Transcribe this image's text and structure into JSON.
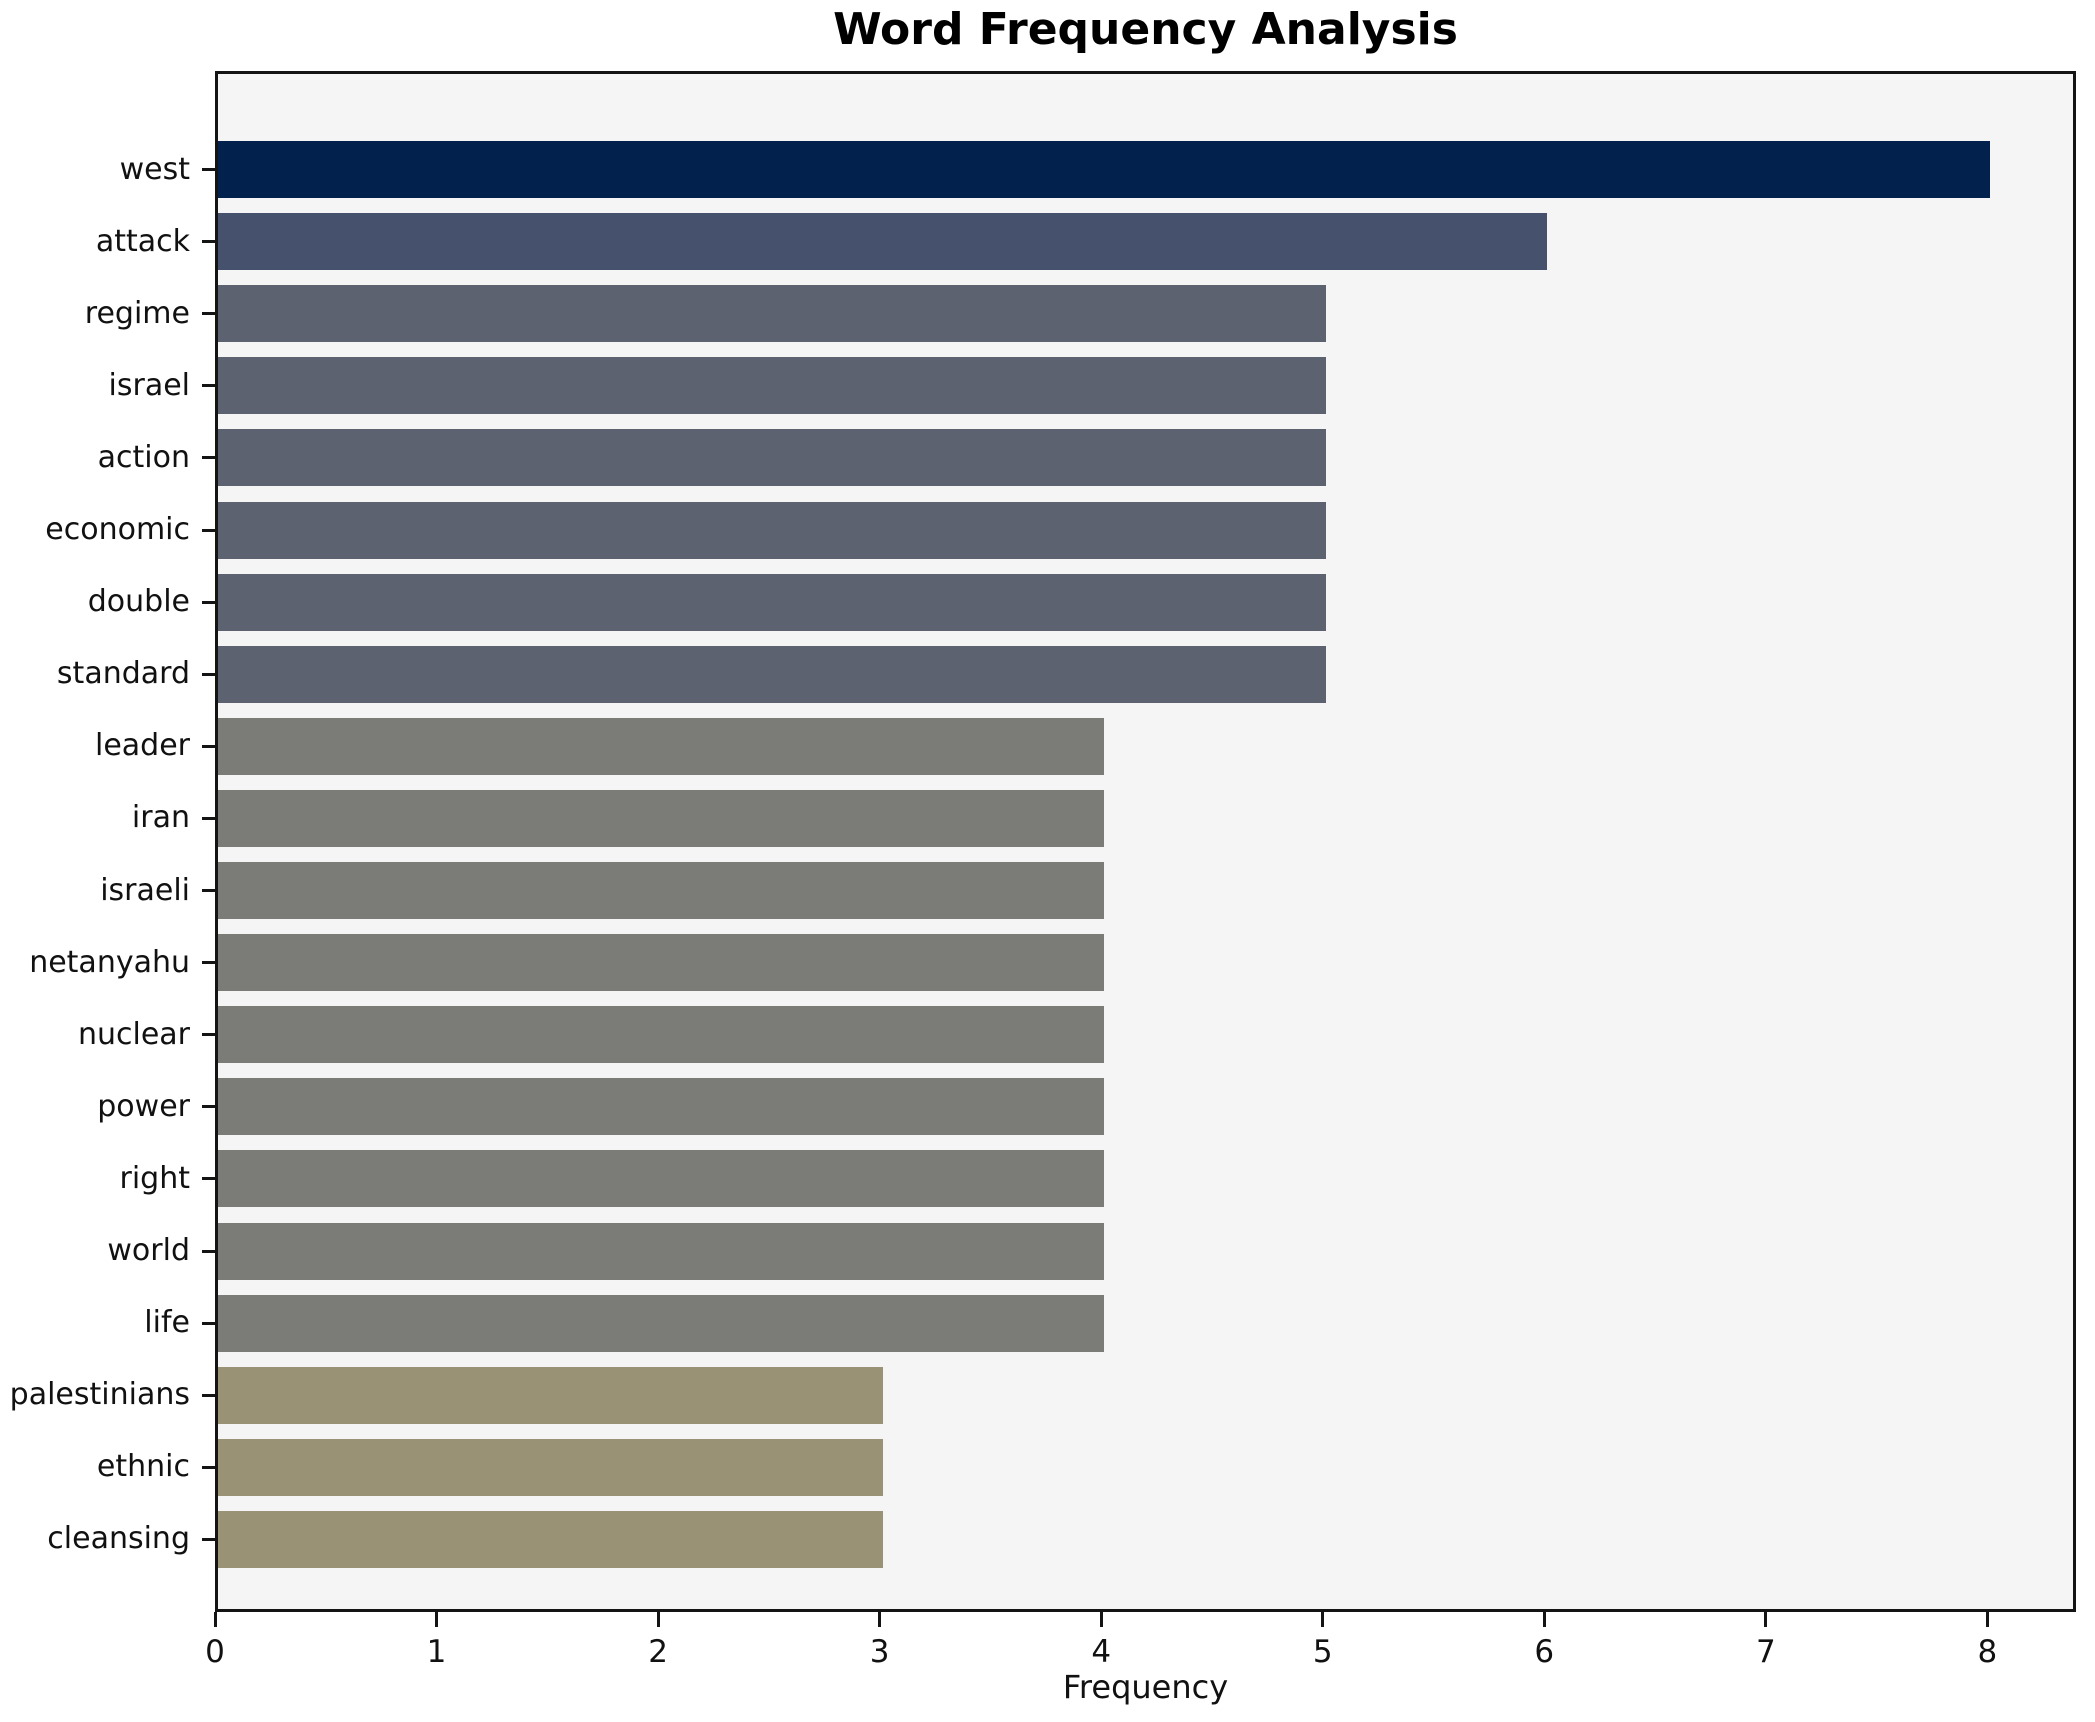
{
  "chart_data": {
    "type": "bar",
    "orientation": "horizontal",
    "title": "Word Frequency Analysis",
    "xlabel": "Frequency",
    "ylabel": "",
    "categories": [
      "west",
      "attack",
      "regime",
      "israel",
      "action",
      "economic",
      "double",
      "standard",
      "leader",
      "iran",
      "israeli",
      "netanyahu",
      "nuclear",
      "power",
      "right",
      "world",
      "life",
      "palestinians",
      "ethnic",
      "cleansing"
    ],
    "values": [
      8,
      6,
      5,
      5,
      5,
      5,
      5,
      5,
      4,
      4,
      4,
      4,
      4,
      4,
      4,
      4,
      4,
      3,
      3,
      3
    ],
    "bar_colors": [
      "#02214d",
      "#46516e",
      "#5d6270",
      "#5d6270",
      "#5d6270",
      "#5d6270",
      "#5d6270",
      "#5d6270",
      "#7b7b78",
      "#7b7b78",
      "#7b7b78",
      "#7b7b78",
      "#7b7b78",
      "#7b7b78",
      "#7b7b78",
      "#7b7b78",
      "#7b7b78",
      "#999274",
      "#999274",
      "#999274"
    ],
    "xticks": [
      0,
      1,
      2,
      3,
      4,
      5,
      6,
      7,
      8
    ],
    "xlim": [
      0,
      8.4
    ],
    "grid": false,
    "legend": "none",
    "plot_background": "#f5f5f6",
    "spine_color": "#141414",
    "text_color": "#111111"
  }
}
